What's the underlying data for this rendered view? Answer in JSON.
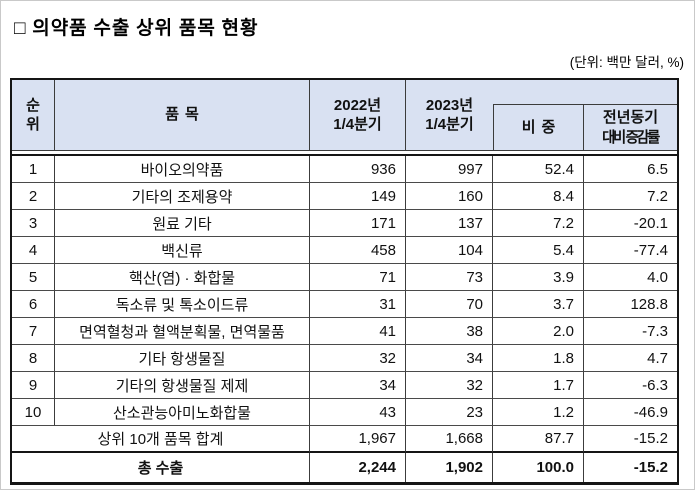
{
  "page": {
    "title": "□ 의약품 수출 상위 품목 현황",
    "unit_note": "(단위: 백만 달러, %)"
  },
  "colors": {
    "header_bg": "#d9e1f2",
    "border_thick": "#151515",
    "border_thin": "#3c3c3c"
  },
  "table": {
    "header": {
      "rank_l1": "순",
      "rank_l2": "위",
      "item": "품목",
      "y2022_l1": "2022년",
      "y2022_l2": "1/4분기",
      "y2023_l1": "2023년",
      "y2023_l2": "1/4분기",
      "share": "비중",
      "yoy_l1": "전년동기",
      "yoy_l2": "대비 증감률"
    },
    "rows": [
      {
        "rank": "1",
        "item": "바이오의약품",
        "v2022": "936",
        "v2023": "997",
        "share": "52.4",
        "yoy": "6.5"
      },
      {
        "rank": "2",
        "item": "기타의 조제용약",
        "v2022": "149",
        "v2023": "160",
        "share": "8.4",
        "yoy": "7.2"
      },
      {
        "rank": "3",
        "item": "원료 기타",
        "v2022": "171",
        "v2023": "137",
        "share": "7.2",
        "yoy": "-20.1"
      },
      {
        "rank": "4",
        "item": "백신류",
        "v2022": "458",
        "v2023": "104",
        "share": "5.4",
        "yoy": "-77.4"
      },
      {
        "rank": "5",
        "item": "핵산(염) · 화합물",
        "v2022": "71",
        "v2023": "73",
        "share": "3.9",
        "yoy": "4.0"
      },
      {
        "rank": "6",
        "item": "독소류 및 톡소이드류",
        "v2022": "31",
        "v2023": "70",
        "share": "3.7",
        "yoy": "128.8"
      },
      {
        "rank": "7",
        "item": "면역혈청과 혈액분획물, 면역물품",
        "v2022": "41",
        "v2023": "38",
        "share": "2.0",
        "yoy": "-7.3"
      },
      {
        "rank": "8",
        "item": "기타 항생물질",
        "v2022": "32",
        "v2023": "34",
        "share": "1.8",
        "yoy": "4.7"
      },
      {
        "rank": "9",
        "item": "기타의 항생물질 제제",
        "v2022": "34",
        "v2023": "32",
        "share": "1.7",
        "yoy": "-6.3"
      },
      {
        "rank": "10",
        "item": "산소관능아미노화합물",
        "v2022": "43",
        "v2023": "23",
        "share": "1.2",
        "yoy": "-46.9"
      }
    ],
    "subtotal": {
      "label": "상위 10개 품목 합계",
      "v2022": "1,967",
      "v2023": "1,668",
      "share": "87.7",
      "yoy": "-15.2"
    },
    "total": {
      "label": "총 수출",
      "v2022": "2,244",
      "v2023": "1,902",
      "share": "100.0",
      "yoy": "-15.2"
    }
  }
}
